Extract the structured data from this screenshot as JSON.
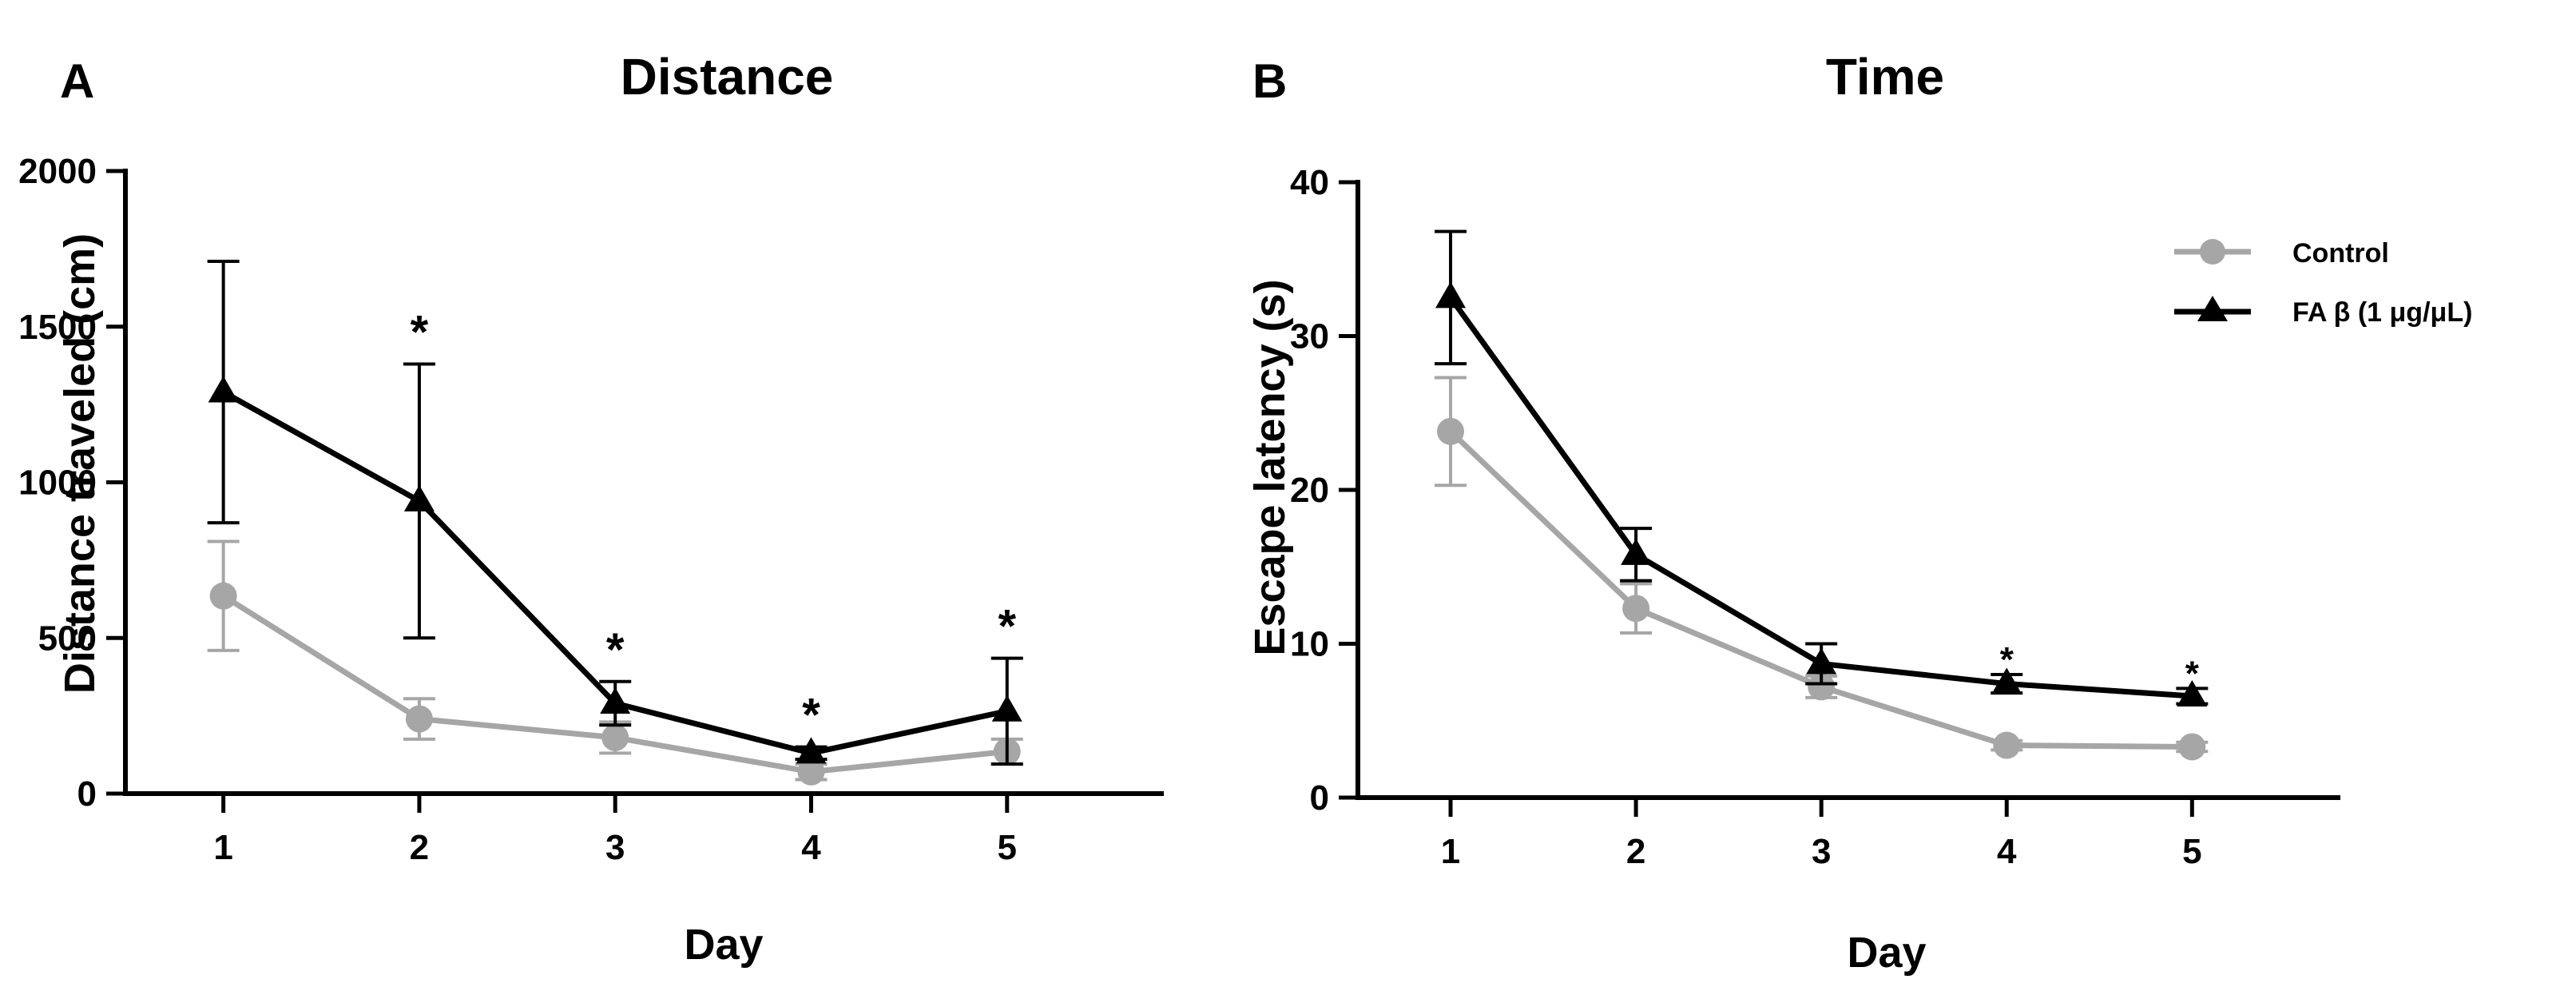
{
  "chart_data": [
    {
      "type": "line",
      "panel": "A",
      "title": "Distance",
      "xlabel": "Day",
      "ylabel": "Distance traveled (cm)",
      "x": [
        1,
        2,
        3,
        4,
        5
      ],
      "xlim": [
        0.5,
        5.8
      ],
      "ylim": [
        0,
        2000
      ],
      "yticks": [
        0,
        500,
        1000,
        1500,
        2000
      ],
      "series": [
        {
          "name": "Control",
          "color": "#a6a6a6",
          "marker": "circle",
          "values": [
            635,
            240,
            180,
            70,
            135
          ],
          "errors": [
            175,
            65,
            50,
            25,
            40
          ]
        },
        {
          "name": "FA β (1 μg/μL)",
          "color": "#000000",
          "marker": "triangle",
          "values": [
            1290,
            940,
            290,
            130,
            265
          ],
          "errors": [
            420,
            440,
            70,
            20,
            170
          ]
        }
      ],
      "significance": [
        {
          "x": 2,
          "label": "*"
        },
        {
          "x": 3,
          "label": "*"
        },
        {
          "x": 4,
          "label": "*"
        },
        {
          "x": 5,
          "label": "*"
        }
      ]
    },
    {
      "type": "line",
      "panel": "B",
      "title": "Time",
      "xlabel": "Day",
      "ylabel": "Escape latency (s)",
      "x": [
        1,
        2,
        3,
        4,
        5
      ],
      "xlim": [
        0.5,
        5.8
      ],
      "ylim": [
        0,
        40
      ],
      "yticks": [
        0,
        10,
        20,
        30,
        40
      ],
      "legend_position": "top-right",
      "series": [
        {
          "name": "Control",
          "color": "#a6a6a6",
          "marker": "circle",
          "values": [
            23.8,
            12.3,
            7.2,
            3.4,
            3.3
          ],
          "errors": [
            3.5,
            1.6,
            0.7,
            0.3,
            0.3
          ]
        },
        {
          "name": "FA β (1 μg/μL)",
          "color": "#000000",
          "marker": "triangle",
          "values": [
            32.5,
            15.8,
            8.7,
            7.4,
            6.6
          ],
          "errors": [
            4.3,
            1.7,
            1.3,
            0.6,
            0.5
          ]
        }
      ],
      "significance": [
        {
          "x": 4,
          "label": "*"
        },
        {
          "x": 5,
          "label": "*"
        }
      ]
    }
  ]
}
